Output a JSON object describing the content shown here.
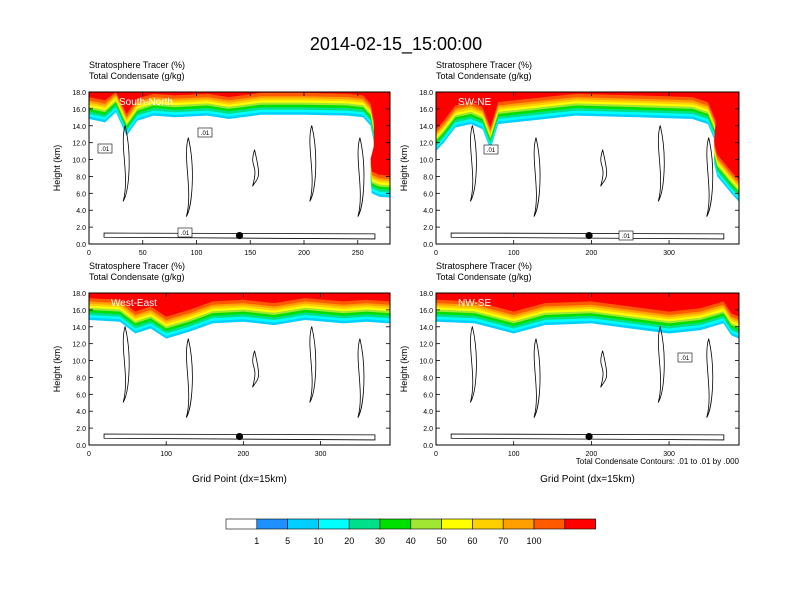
{
  "figure": {
    "title": "2014-02-15_15:00:00",
    "contour_note": "Total Condensate Contours: .01 to .01 by .000"
  },
  "colorbar": {
    "labels": [
      "1",
      "5",
      "10",
      "20",
      "30",
      "40",
      "50",
      "60",
      "70",
      "100"
    ],
    "colors": [
      "#ffffff",
      "#1e90ff",
      "#00cfff",
      "#00ffff",
      "#00e08a",
      "#00e000",
      "#a0e632",
      "#ffff00",
      "#ffd000",
      "#ffa000",
      "#ff5a00",
      "#ff0000"
    ]
  },
  "chart_data": [
    {
      "type": "heatmap",
      "title": "South-North",
      "label1": "Stratosphere Tracer   (%)",
      "label2": "Total Condensate   (g/kg)",
      "xlabel": "",
      "ylabel": "Height (km)",
      "xlim": [
        0,
        280
      ],
      "ylim": [
        0,
        18
      ],
      "xticks": [
        "0",
        "50",
        "100",
        "150",
        "200",
        "250"
      ],
      "yticks": [
        "0.0",
        "2.0",
        "4.0",
        "6.0",
        "8.0",
        "10.0",
        "12.0",
        "14.0",
        "16.0",
        "18.0"
      ],
      "tracer_base_km": [
        [
          0,
          14.8
        ],
        [
          15,
          14.4
        ],
        [
          25,
          15.6
        ],
        [
          35,
          12.8
        ],
        [
          45,
          14.6
        ],
        [
          60,
          15.2
        ],
        [
          80,
          15.0
        ],
        [
          110,
          15.2
        ],
        [
          130,
          14.8
        ],
        [
          160,
          15.3
        ],
        [
          200,
          15.3
        ],
        [
          240,
          15.2
        ],
        [
          255,
          15.0
        ],
        [
          262,
          14.0
        ],
        [
          265,
          12.0
        ],
        [
          265,
          9.0
        ],
        [
          262,
          7.5
        ],
        [
          263,
          6.0
        ],
        [
          270,
          5.6
        ],
        [
          280,
          5.5
        ]
      ],
      "contour_labels": [
        ".01",
        ".01",
        ".01"
      ],
      "marker": {
        "x": 140,
        "y": 1.0
      }
    },
    {
      "type": "heatmap",
      "title": "SW-NE",
      "label1": "Stratosphere Tracer   (%)",
      "label2": "Total Condensate   (g/kg)",
      "xlabel": "",
      "ylabel": "Height (km)",
      "xlim": [
        0,
        390
      ],
      "ylim": [
        0,
        18
      ],
      "xticks": [
        "0",
        "100",
        "200",
        "300"
      ],
      "yticks": [
        "0.0",
        "2.0",
        "4.0",
        "6.0",
        "8.0",
        "10.0",
        "12.0",
        "14.0",
        "16.0",
        "18.0"
      ],
      "tracer_base_km": [
        [
          0,
          11.0
        ],
        [
          10,
          12.0
        ],
        [
          25,
          13.8
        ],
        [
          45,
          14.2
        ],
        [
          60,
          13.6
        ],
        [
          70,
          11.2
        ],
        [
          80,
          14.2
        ],
        [
          120,
          14.6
        ],
        [
          180,
          15.2
        ],
        [
          260,
          15.0
        ],
        [
          330,
          14.8
        ],
        [
          350,
          14.2
        ],
        [
          360,
          12.0
        ],
        [
          358,
          9.5
        ],
        [
          362,
          8.0
        ],
        [
          380,
          6.0
        ],
        [
          390,
          5.0
        ]
      ],
      "contour_labels": [
        ".01",
        ".01"
      ],
      "marker": {
        "x": 197,
        "y": 1.0
      }
    },
    {
      "type": "heatmap",
      "title": "West-East",
      "label1": "Stratosphere Tracer   (%)",
      "label2": "Total Condensate   (g/kg)",
      "xlabel": "Grid Point (dx=15km)",
      "ylabel": "Height (km)",
      "xlim": [
        0,
        390
      ],
      "ylim": [
        0,
        18
      ],
      "xticks": [
        "0",
        "100",
        "200",
        "300"
      ],
      "yticks": [
        "0.0",
        "2.0",
        "4.0",
        "6.0",
        "8.0",
        "10.0",
        "12.0",
        "14.0",
        "16.0",
        "18.0"
      ],
      "tracer_base_km": [
        [
          0,
          14.8
        ],
        [
          40,
          14.6
        ],
        [
          60,
          13.2
        ],
        [
          80,
          13.8
        ],
        [
          100,
          12.6
        ],
        [
          130,
          13.4
        ],
        [
          160,
          14.4
        ],
        [
          200,
          14.6
        ],
        [
          240,
          14.2
        ],
        [
          280,
          14.8
        ],
        [
          330,
          14.4
        ],
        [
          360,
          14.6
        ],
        [
          390,
          14.4
        ]
      ],
      "contour_labels": [],
      "marker": {
        "x": 195,
        "y": 1.0
      }
    },
    {
      "type": "heatmap",
      "title": "NW-SE",
      "label1": "Stratosphere Tracer   (%)",
      "label2": "Total Condensate   (g/kg)",
      "xlabel": "Grid Point (dx=15km)",
      "ylabel": "Height (km)",
      "xlim": [
        0,
        390
      ],
      "ylim": [
        0,
        18
      ],
      "xticks": [
        "0",
        "100",
        "200",
        "300"
      ],
      "yticks": [
        "0.0",
        "2.0",
        "4.0",
        "6.0",
        "8.0",
        "10.0",
        "12.0",
        "14.0",
        "16.0",
        "18.0"
      ],
      "tracer_base_km": [
        [
          0,
          14.6
        ],
        [
          50,
          14.4
        ],
        [
          100,
          13.2
        ],
        [
          140,
          14.2
        ],
        [
          200,
          14.4
        ],
        [
          250,
          13.8
        ],
        [
          300,
          13.2
        ],
        [
          340,
          13.6
        ],
        [
          370,
          14.4
        ],
        [
          380,
          13.0
        ],
        [
          390,
          12.6
        ]
      ],
      "contour_labels": [
        ".01"
      ],
      "marker": {
        "x": 197,
        "y": 1.0
      }
    }
  ]
}
